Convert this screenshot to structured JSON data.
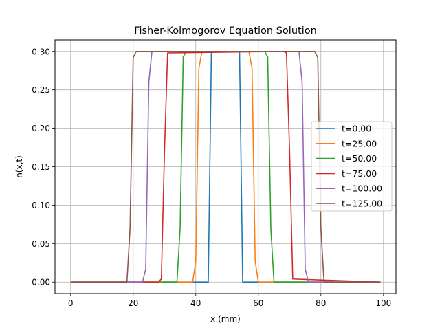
{
  "chart_data": {
    "type": "line",
    "title": "Fisher-Kolmogorov Equation Solution",
    "xlabel": "x (mm)",
    "ylabel": "n(x,t)",
    "xlim": [
      -5,
      104
    ],
    "ylim": [
      -0.015,
      0.315
    ],
    "xticks": [
      0,
      20,
      40,
      60,
      80,
      100
    ],
    "xtick_labels": [
      "0",
      "20",
      "40",
      "60",
      "80",
      "100"
    ],
    "yticks": [
      0.0,
      0.05,
      0.1,
      0.15,
      0.2,
      0.25,
      0.3
    ],
    "ytick_labels": [
      "0.00",
      "0.05",
      "0.10",
      "0.15",
      "0.20",
      "0.25",
      "0.30"
    ],
    "grid": true,
    "legend_position": "center-right",
    "series": [
      {
        "name": "t=0.00",
        "color": "#1f77b4",
        "x": [
          0,
          44,
          45,
          54,
          55,
          99
        ],
        "y": [
          0,
          0,
          0.3,
          0.3,
          0,
          0
        ]
      },
      {
        "name": "t=25.00",
        "color": "#ff7f0e",
        "x": [
          0,
          39,
          40,
          41,
          42,
          57,
          58,
          59,
          60,
          99
        ],
        "y": [
          0,
          0,
          0.027,
          0.278,
          0.3,
          0.3,
          0.278,
          0.027,
          0,
          0
        ]
      },
      {
        "name": "t=50.00",
        "color": "#2ca02c",
        "x": [
          0,
          34,
          35,
          36,
          37,
          62,
          63,
          64,
          65,
          99
        ],
        "y": [
          0,
          0,
          0.07,
          0.293,
          0.3,
          0.3,
          0.293,
          0.07,
          0,
          0
        ]
      },
      {
        "name": "t=75.00",
        "color": "#d62728",
        "x": [
          0,
          28,
          29,
          30,
          31,
          68,
          69,
          70,
          71,
          99
        ],
        "y": [
          0,
          0,
          0.004,
          0.17,
          0.298,
          0.3,
          0.298,
          0.17,
          0.004,
          0
        ]
      },
      {
        "name": "t=100.00",
        "color": "#9467bd",
        "x": [
          0,
          23,
          24,
          25,
          26,
          73,
          74,
          75,
          76,
          99
        ],
        "y": [
          0,
          0,
          0.017,
          0.26,
          0.3,
          0.3,
          0.26,
          0.017,
          0,
          0
        ]
      },
      {
        "name": "t=125.00",
        "color": "#8c564b",
        "x": [
          0,
          18,
          19,
          20,
          21,
          78,
          79,
          80,
          81,
          99
        ],
        "y": [
          0,
          0,
          0.07,
          0.292,
          0.3,
          0.3,
          0.292,
          0.07,
          0,
          0
        ]
      }
    ]
  }
}
